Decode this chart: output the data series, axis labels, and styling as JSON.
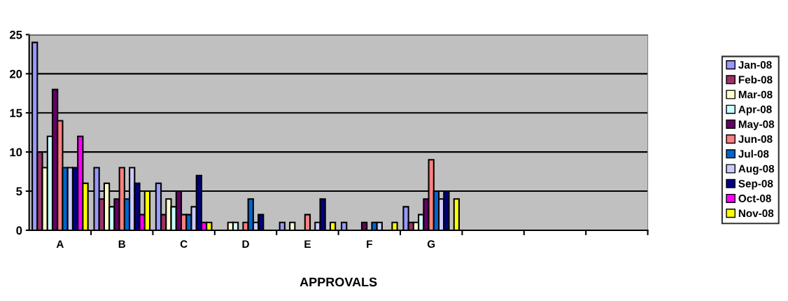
{
  "chart_data": {
    "type": "bar",
    "xlabel": "APPROVALS",
    "categories": [
      "A",
      "B",
      "C",
      "D",
      "E",
      "F",
      "G",
      null,
      null,
      null
    ],
    "series": [
      {
        "name": "Jan-08",
        "color": "#9999ff",
        "values": [
          24,
          8,
          6,
          0,
          1,
          1,
          3,
          null,
          null,
          null
        ]
      },
      {
        "name": "Feb-08",
        "color": "#993366",
        "values": [
          10,
          4,
          2,
          0,
          0,
          0,
          1,
          null,
          null,
          null
        ]
      },
      {
        "name": "Mar-08",
        "color": "#ffffcc",
        "values": [
          8,
          6,
          4,
          1,
          1,
          0,
          1,
          null,
          null,
          null
        ]
      },
      {
        "name": "Apr-08",
        "color": "#ccffff",
        "values": [
          12,
          3,
          3,
          1,
          0,
          0,
          2,
          null,
          null,
          null
        ]
      },
      {
        "name": "May-08",
        "color": "#660066",
        "values": [
          18,
          4,
          5,
          0,
          0,
          1,
          4,
          null,
          null,
          null
        ]
      },
      {
        "name": "Jun-08",
        "color": "#ff8080",
        "values": [
          14,
          8,
          2,
          1,
          2,
          0,
          9,
          null,
          null,
          null
        ]
      },
      {
        "name": "Jul-08",
        "color": "#0066cc",
        "values": [
          8,
          4,
          2,
          4,
          0,
          1,
          5,
          null,
          null,
          null
        ]
      },
      {
        "name": "Aug-08",
        "color": "#ccccff",
        "values": [
          8,
          8,
          3,
          1,
          1,
          1,
          4,
          null,
          null,
          null
        ]
      },
      {
        "name": "Sep-08",
        "color": "#000080",
        "values": [
          8,
          6,
          7,
          2,
          4,
          0,
          5,
          null,
          null,
          null
        ]
      },
      {
        "name": "Oct-08",
        "color": "#ff00ff",
        "values": [
          12,
          2,
          1,
          0,
          0,
          0,
          0,
          null,
          null,
          null
        ]
      },
      {
        "name": "Nov-08",
        "color": "#ffff00",
        "values": [
          6,
          5,
          1,
          0,
          1,
          1,
          4,
          null,
          null,
          null
        ]
      }
    ],
    "ylim": [
      0,
      25
    ],
    "yticks": [
      0,
      5,
      10,
      15,
      20,
      25
    ],
    "grid": "y",
    "legend": "right"
  }
}
